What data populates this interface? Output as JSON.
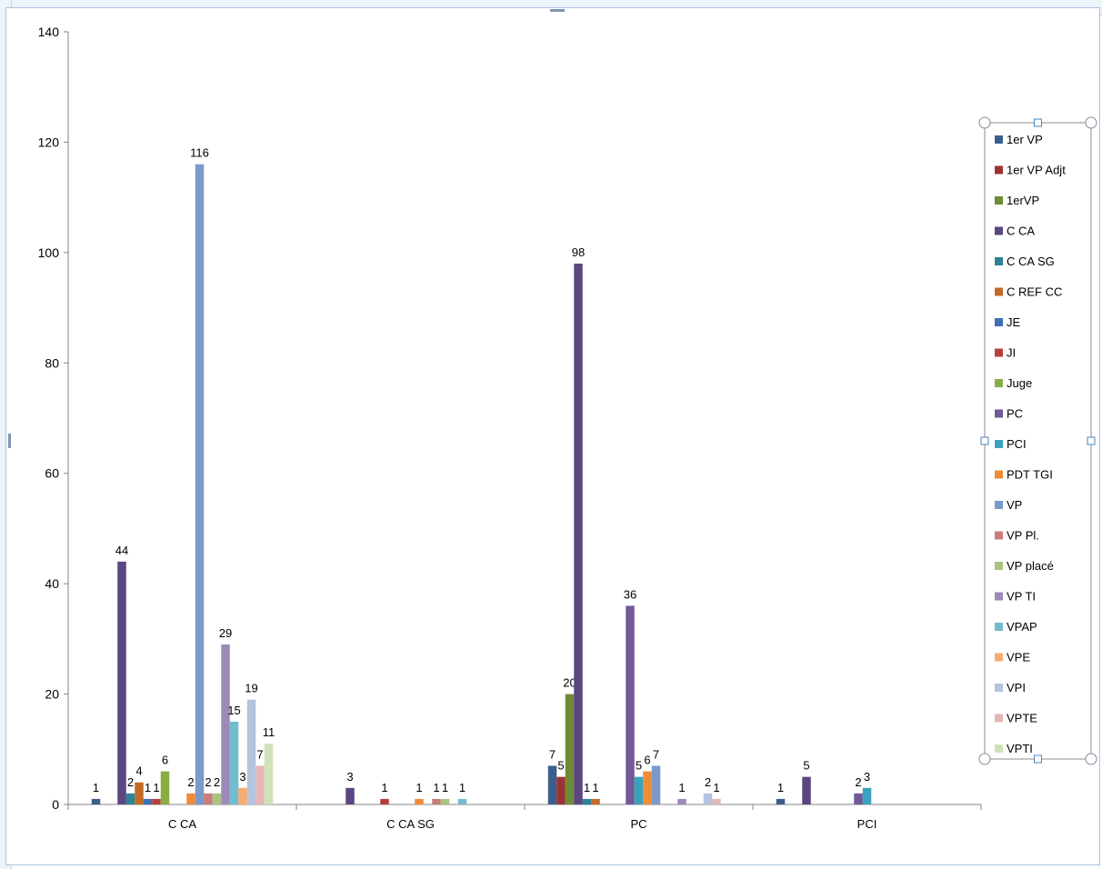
{
  "chart_data": {
    "type": "bar",
    "categories": [
      "C CA",
      "C CA SG",
      "PC",
      "PCI"
    ],
    "ylim": [
      0,
      140
    ],
    "yticks": [
      0,
      20,
      40,
      60,
      80,
      100,
      120,
      140
    ],
    "grid": false,
    "legend_position": "right",
    "series": [
      {
        "name": "1er VP",
        "color": "#3b5e8d",
        "values": [
          1,
          null,
          7,
          1
        ]
      },
      {
        "name": "1er VP Adjt",
        "color": "#9b3333",
        "values": [
          null,
          null,
          5,
          null
        ]
      },
      {
        "name": "1erVP",
        "color": "#6e8b36",
        "values": [
          null,
          null,
          20,
          null
        ]
      },
      {
        "name": "C CA",
        "color": "#5b4680",
        "values": [
          44,
          3,
          98,
          5
        ]
      },
      {
        "name": "C CA SG",
        "color": "#2c8395",
        "values": [
          2,
          null,
          1,
          null
        ]
      },
      {
        "name": "C REF CC",
        "color": "#c36a26",
        "values": [
          4,
          null,
          1,
          null
        ]
      },
      {
        "name": "JE",
        "color": "#3f6fb4",
        "values": [
          1,
          null,
          null,
          null
        ]
      },
      {
        "name": "JI",
        "color": "#b63f3c",
        "values": [
          1,
          1,
          null,
          null
        ]
      },
      {
        "name": "Juge",
        "color": "#87ad43",
        "values": [
          6,
          null,
          null,
          null
        ]
      },
      {
        "name": "PC",
        "color": "#705996",
        "values": [
          null,
          null,
          36,
          2
        ]
      },
      {
        "name": "PCI",
        "color": "#3aa2bd",
        "values": [
          null,
          null,
          5,
          3
        ]
      },
      {
        "name": "PDT TGI",
        "color": "#ef8c37",
        "values": [
          2,
          1,
          6,
          null
        ]
      },
      {
        "name": "VP",
        "color": "#7b99c9",
        "values": [
          116,
          null,
          7,
          null
        ]
      },
      {
        "name": "VP Pl.",
        "color": "#ca7b7a",
        "values": [
          2,
          1,
          null,
          null
        ]
      },
      {
        "name": "VP placé",
        "color": "#a9c47c",
        "values": [
          2,
          1,
          null,
          null
        ]
      },
      {
        "name": "VP TI",
        "color": "#9d8ab9",
        "values": [
          29,
          null,
          1,
          null
        ]
      },
      {
        "name": "VPAP",
        "color": "#72bccf",
        "values": [
          15,
          1,
          null,
          null
        ]
      },
      {
        "name": "VPE",
        "color": "#f7ac71",
        "values": [
          3,
          null,
          null,
          null
        ]
      },
      {
        "name": "VPI",
        "color": "#b5c3de",
        "values": [
          19,
          null,
          2,
          null
        ]
      },
      {
        "name": "VPTE",
        "color": "#e3b7b6",
        "values": [
          7,
          null,
          1,
          null
        ]
      },
      {
        "name": "VPTI",
        "color": "#d1e1b8",
        "values": [
          11,
          null,
          null,
          null
        ]
      }
    ]
  }
}
